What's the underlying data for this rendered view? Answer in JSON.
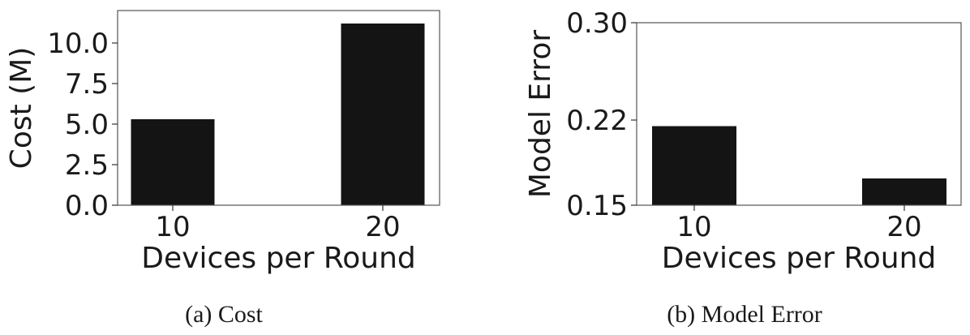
{
  "colors": {
    "bar": "#141414",
    "axis": "#555555",
    "text": "#1a1a1a"
  },
  "chart_data": [
    {
      "type": "bar",
      "title": "",
      "caption": "(a) Cost",
      "xlabel": "Devices per Round",
      "ylabel": "Cost (M)",
      "categories": [
        "10",
        "20"
      ],
      "values": [
        5.3,
        11.2
      ],
      "ylim": [
        0,
        12
      ],
      "yticks": [
        0.0,
        2.5,
        5.0,
        7.5,
        10.0
      ],
      "ytick_labels": [
        "0.0",
        "2.5",
        "5.0",
        "7.5",
        "10.0"
      ],
      "grid": false,
      "legend": "none"
    },
    {
      "type": "bar",
      "title": "",
      "caption": "(b) Model Error",
      "xlabel": "Devices per Round",
      "ylabel": "Model Error",
      "categories": [
        "10",
        "20"
      ],
      "values": [
        0.215,
        0.172
      ],
      "ylim": [
        0.15,
        0.3
      ],
      "yticks": [
        0.15,
        0.22,
        0.3
      ],
      "ytick_labels": [
        "0.15",
        "0.22",
        "0.30"
      ],
      "grid": false,
      "legend": "none"
    }
  ]
}
